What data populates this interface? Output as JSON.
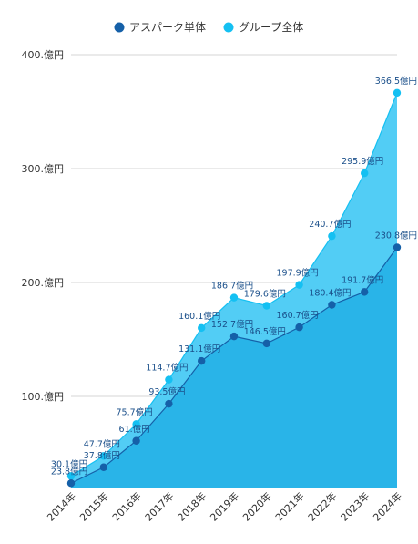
{
  "chart_data": {
    "type": "area",
    "title": "",
    "xlabel": "",
    "ylabel": "",
    "categories": [
      "2014年",
      "2015年",
      "2016年",
      "2017年",
      "2018年",
      "2019年",
      "2020年",
      "2021年",
      "2022年",
      "2023年",
      "2024年"
    ],
    "series": [
      {
        "name": "アスパーク単体",
        "color": "#1560a8",
        "fill": "#29b4e8",
        "values": [
          23.8,
          37.8,
          61.0,
          93.5,
          131.1,
          152.7,
          146.5,
          160.7,
          180.4,
          191.7,
          230.8
        ],
        "labels": [
          "23.8億円",
          "37.8億円",
          "61.億円",
          "93.5億円",
          "131.1億円",
          "152.7億円",
          "146.5億円",
          "160.7億円",
          "180.4億円",
          "191.7億円",
          "230.8億円"
        ]
      },
      {
        "name": "グループ全体",
        "color": "#14c0f2",
        "fill": "#52cdf5",
        "values": [
          30.1,
          47.7,
          75.7,
          114.7,
          160.1,
          186.7,
          179.6,
          197.9,
          240.7,
          295.9,
          366.5
        ],
        "labels": [
          "30.1億円",
          "47.7億円",
          "75.7億円",
          "114.7億円",
          "160.1億円",
          "186.7億円",
          "179.6億円",
          "197.9億円",
          "240.7億円",
          "295.9億円",
          "366.5億円"
        ]
      }
    ],
    "y_ticks": [
      {
        "value": 100,
        "label": "100.億円"
      },
      {
        "value": 200,
        "label": "200.億円"
      },
      {
        "value": 300,
        "label": "300.億円"
      },
      {
        "value": 400,
        "label": "400.億円"
      }
    ],
    "ylim": [
      20,
      400
    ],
    "grid": true,
    "legend_position": "top-center"
  }
}
